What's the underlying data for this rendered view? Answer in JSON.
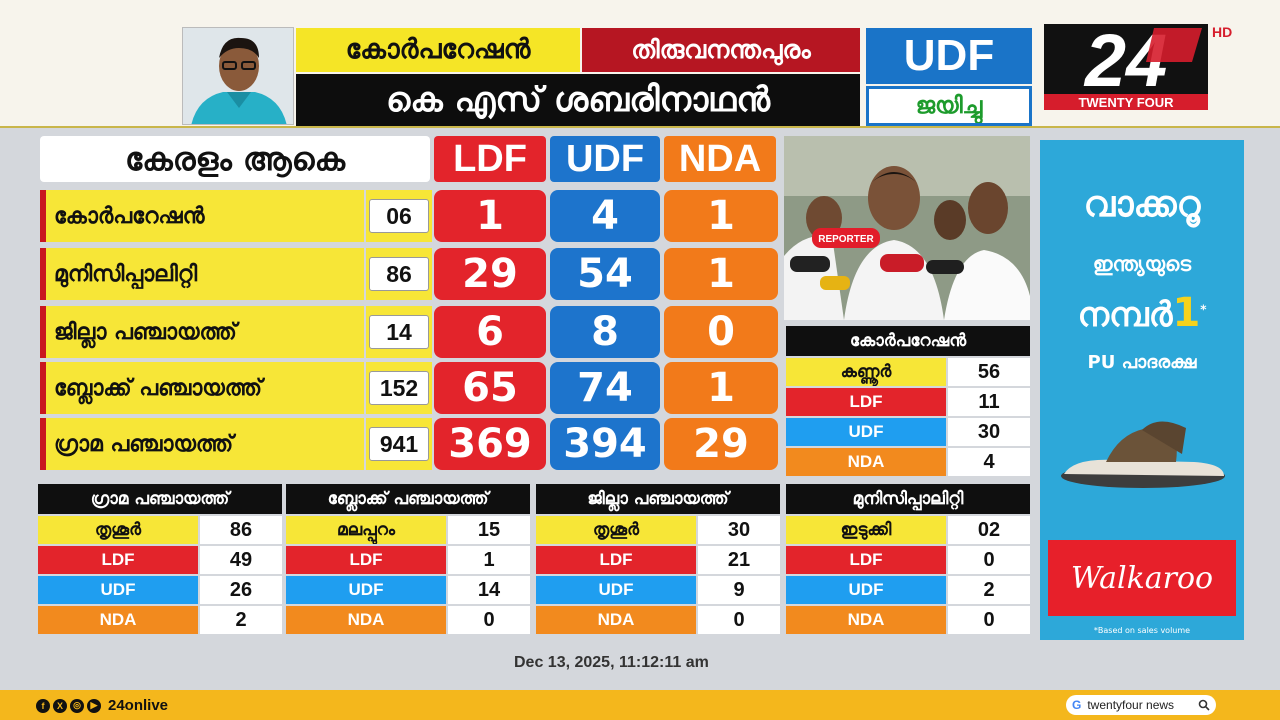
{
  "banner": {
    "category": "കോർപറേഷൻ",
    "city": "തിരുവനന്തപുരം",
    "candidate": "കെ എസ് ശബരിനാഥൻ",
    "party": "UDF",
    "result": "ജയിച്ചു",
    "hd": "HD"
  },
  "logo": {
    "number": "24",
    "text": "TWENTY FOUR"
  },
  "table": {
    "region": "കേരളം ആകെ",
    "parties": [
      "LDF",
      "UDF",
      "NDA"
    ],
    "rows": [
      {
        "label": "കോർപറേഷൻ",
        "total": "06",
        "ldf": "1",
        "udf": "4",
        "nda": "1"
      },
      {
        "label": "മുനിസിപ്പാലിറ്റി",
        "total": "86",
        "ldf": "29",
        "udf": "54",
        "nda": "1"
      },
      {
        "label": "ജില്ലാ പഞ്ചായത്ത്",
        "total": "14",
        "ldf": "6",
        "udf": "8",
        "nda": "0"
      },
      {
        "label": "ബ്ലോക്ക് പഞ്ചായത്ത്",
        "total": "152",
        "ldf": "65",
        "udf": "74",
        "nda": "1"
      },
      {
        "label": "ഗ്രാമ പഞ്ചായത്ത്",
        "total": "941",
        "ldf": "369",
        "udf": "394",
        "nda": "29"
      }
    ]
  },
  "photo": {
    "mic_label": "REPORTER"
  },
  "mini_tables": [
    {
      "title": "ഗ്രാമ പഞ്ചായത്ത്",
      "place": "തൃശൂർ",
      "total": "86",
      "ldf_label": "LDF",
      "ldf": "49",
      "udf_label": "UDF",
      "udf": "26",
      "nda_label": "NDA",
      "nda": "2"
    },
    {
      "title": "ബ്ലോക്ക് പഞ്ചായത്ത്",
      "place": "മലപ്പുറം",
      "total": "15",
      "ldf_label": "LDF",
      "ldf": "1",
      "udf_label": "UDF",
      "udf": "14",
      "nda_label": "NDA",
      "nda": "0"
    },
    {
      "title": "ജില്ലാ പഞ്ചായത്ത്",
      "place": "തൃശൂർ",
      "total": "30",
      "ldf_label": "LDF",
      "ldf": "21",
      "udf_label": "UDF",
      "udf": "9",
      "nda_label": "NDA",
      "nda": "0"
    },
    {
      "title": "മുനിസിപ്പാലിറ്റി",
      "place": "ഇടുക്കി",
      "total": "02",
      "ldf_label": "LDF",
      "ldf": "0",
      "udf_label": "UDF",
      "udf": "2",
      "nda_label": "NDA",
      "nda": "0"
    },
    {
      "title": "കോർപറേഷൻ",
      "place": "കണ്ണൂർ",
      "total": "56",
      "ldf_label": "LDF",
      "ldf": "11",
      "udf_label": "UDF",
      "udf": "30",
      "nda_label": "NDA",
      "nda": "4"
    }
  ],
  "ad": {
    "brand_ml": "വാക്കറൂ",
    "line1": "ഇന്ത്യയുടെ",
    "line2": "നമ്പർ",
    "line2_num": "1",
    "line2_star": "*",
    "line3": "PU പാദരക്ഷ",
    "logo": "Walkaroo",
    "footnote": "*Based on sales volume"
  },
  "timestamp": "Dec 13, 2025, 11:12:11 am",
  "footer": {
    "handle": "24onlive",
    "search_text": "twentyfour news",
    "search_g": "G"
  },
  "colors": {
    "ldf": "#e3242b",
    "udf": "#1d74cc",
    "nda": "#f27a1a",
    "yellow": "#f7e637"
  }
}
